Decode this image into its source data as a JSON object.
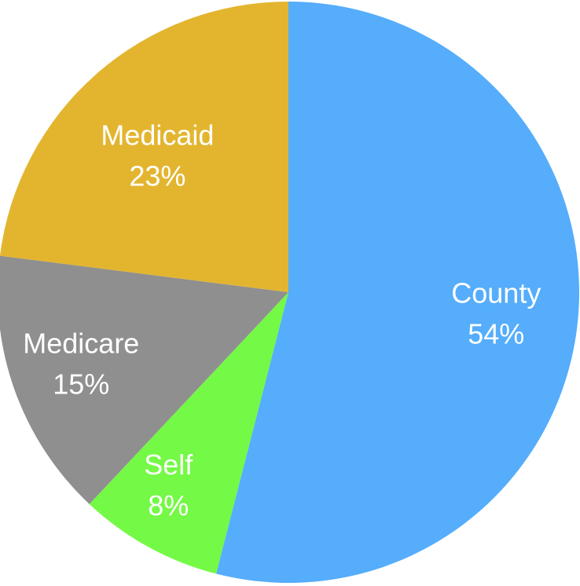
{
  "chart_data": {
    "type": "pie",
    "slices": [
      {
        "label": "County",
        "value": 54,
        "value_label": "54%",
        "color": "#55adfb"
      },
      {
        "label": "Self",
        "value": 8,
        "value_label": "8%",
        "color": "#74f946"
      },
      {
        "label": "Medicare",
        "value": 15,
        "value_label": "15%",
        "color": "#8f8f8f"
      },
      {
        "label": "Medicaid",
        "value": 23,
        "value_label": "23%",
        "color": "#e3b52f"
      }
    ],
    "start_angle_deg": 0,
    "direction": "clockwise",
    "legend": "none"
  }
}
